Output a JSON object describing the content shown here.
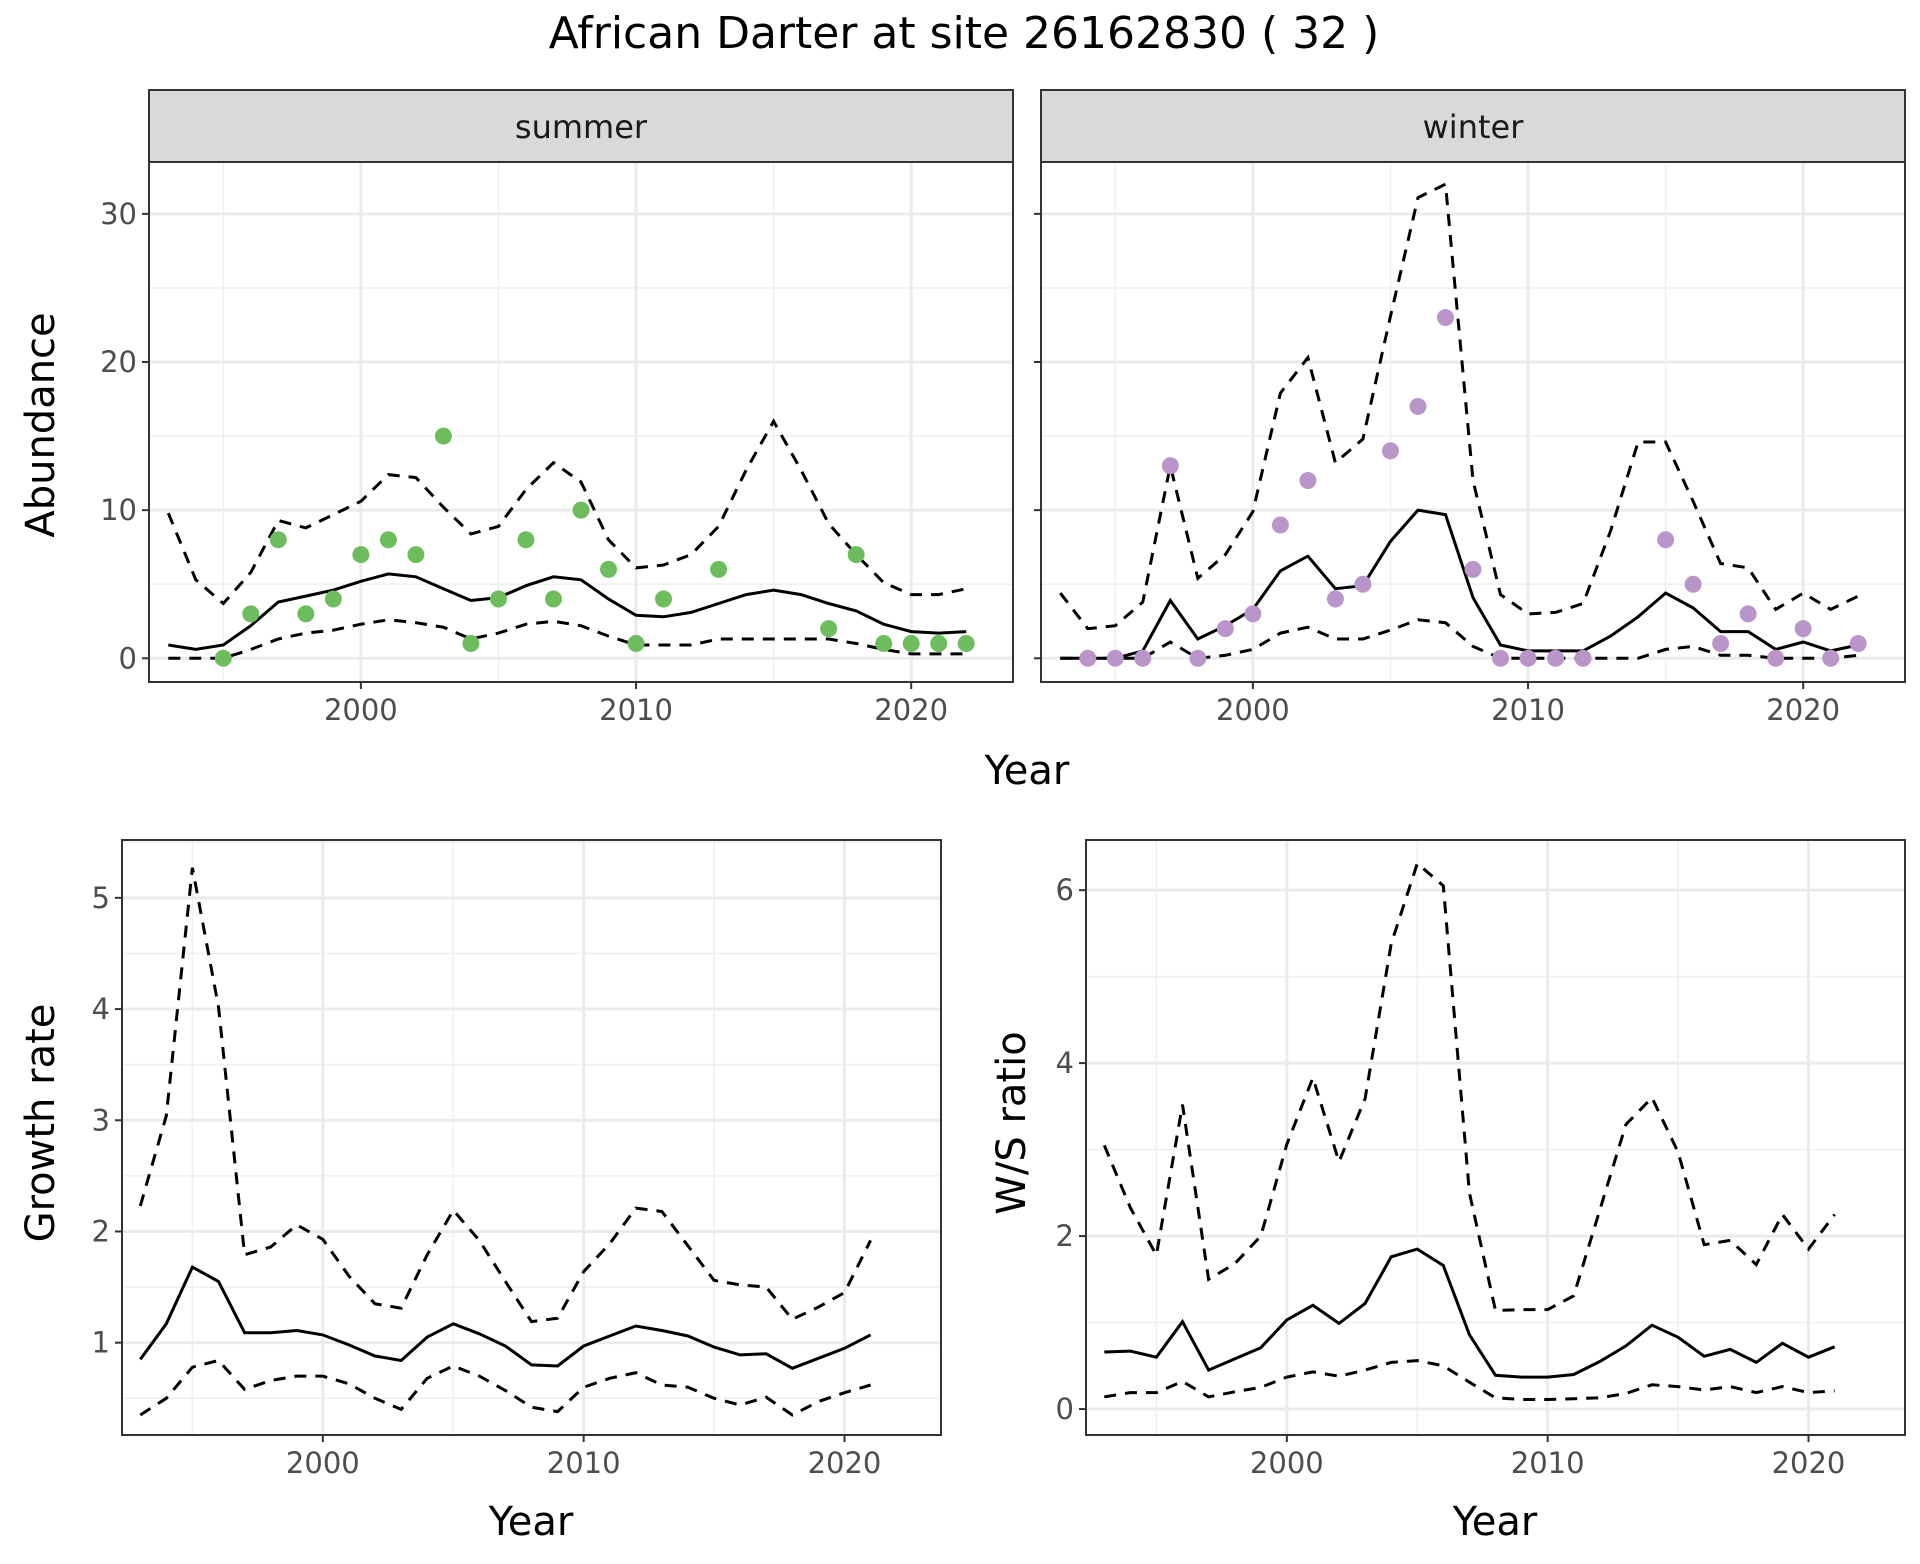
{
  "figure": {
    "title": "African Darter at site 26162830 ( 32 )"
  },
  "chart_data": [
    {
      "type": "line",
      "panel": "abundance",
      "facets": [
        "summer",
        "winter"
      ],
      "xlabel": "Year",
      "ylabel": "Abundance",
      "xlim": [
        1992.3,
        2023.7
      ],
      "ylim": [
        -1.6,
        33.5
      ],
      "xticks": [
        2000,
        2010,
        2020
      ],
      "yticks": [
        0,
        10,
        20,
        30
      ],
      "line_style": {
        "fit": "solid",
        "bounds": "dashed"
      },
      "colors": {
        "summer": "#6dbd5f",
        "winter": "#b995c9"
      },
      "x": [
        1993,
        1994,
        1995,
        1996,
        1997,
        1998,
        1999,
        2000,
        2001,
        2002,
        2003,
        2004,
        2005,
        2006,
        2007,
        2008,
        2009,
        2010,
        2011,
        2012,
        2013,
        2014,
        2015,
        2016,
        2017,
        2018,
        2019,
        2020,
        2021,
        2022
      ],
      "summer": {
        "fit": [
          0.9,
          0.6,
          0.9,
          2.2,
          3.8,
          4.2,
          4.6,
          5.2,
          5.7,
          5.5,
          4.7,
          3.9,
          4.1,
          4.9,
          5.5,
          5.3,
          4.0,
          2.9,
          2.8,
          3.1,
          3.7,
          4.3,
          4.6,
          4.3,
          3.7,
          3.2,
          2.3,
          1.8,
          1.7,
          1.8
        ],
        "lower": [
          0.0,
          0.0,
          0.0,
          0.6,
          1.3,
          1.7,
          1.9,
          2.3,
          2.6,
          2.4,
          2.1,
          1.3,
          1.7,
          2.3,
          2.5,
          2.2,
          1.5,
          0.9,
          0.9,
          0.9,
          1.3,
          1.3,
          1.3,
          1.3,
          1.3,
          1.0,
          0.6,
          0.3,
          0.3,
          0.3
        ],
        "upper": [
          9.8,
          5.3,
          3.7,
          5.8,
          9.3,
          8.8,
          9.7,
          10.6,
          12.4,
          12.2,
          10.2,
          8.4,
          8.9,
          11.4,
          13.2,
          11.9,
          8.0,
          6.1,
          6.3,
          7.0,
          8.9,
          12.7,
          16.0,
          12.7,
          9.1,
          7.0,
          5.1,
          4.3,
          4.3,
          4.7
        ],
        "points": {
          "x": [
            1995,
            1996,
            1997,
            1998,
            1999,
            2000,
            2001,
            2002,
            2003,
            2004,
            2005,
            2006,
            2007,
            2008,
            2009,
            2010,
            2011,
            2013,
            2017,
            2018,
            2019,
            2020,
            2021,
            2022
          ],
          "y": [
            0,
            3,
            8,
            3,
            4,
            7,
            8,
            7,
            15,
            1,
            4,
            8,
            4,
            10,
            6,
            1,
            4,
            6,
            2,
            7,
            1,
            1,
            1,
            1
          ]
        }
      },
      "winter": {
        "fit": [
          0.0,
          0.0,
          0.0,
          0.5,
          3.9,
          1.3,
          2.2,
          3.3,
          5.9,
          6.9,
          4.7,
          4.9,
          7.9,
          10.0,
          9.7,
          4.1,
          0.9,
          0.5,
          0.5,
          0.5,
          1.5,
          2.8,
          4.4,
          3.4,
          1.8,
          1.8,
          0.6,
          1.1,
          0.5,
          0.9
        ],
        "lower": [
          0.0,
          0.0,
          0.0,
          0.0,
          1.1,
          0.0,
          0.2,
          0.6,
          1.7,
          2.1,
          1.3,
          1.3,
          1.9,
          2.6,
          2.4,
          0.8,
          0.0,
          0.0,
          0.0,
          0.0,
          0.0,
          0.0,
          0.6,
          0.8,
          0.2,
          0.2,
          0.0,
          0.0,
          0.0,
          0.2
        ],
        "upper": [
          4.4,
          2.0,
          2.2,
          3.8,
          13.0,
          5.4,
          7.0,
          9.9,
          17.9,
          20.3,
          13.2,
          14.8,
          23.1,
          31.1,
          32.0,
          12.0,
          4.3,
          3.0,
          3.1,
          3.7,
          8.6,
          14.6,
          14.6,
          10.6,
          6.4,
          6.1,
          3.3,
          4.4,
          3.3,
          4.2
        ],
        "points": {
          "x": [
            1994,
            1995,
            1996,
            1997,
            1998,
            1999,
            2000,
            2001,
            2002,
            2003,
            2004,
            2005,
            2006,
            2007,
            2008,
            2009,
            2010,
            2011,
            2012,
            2015,
            2016,
            2017,
            2018,
            2019,
            2020,
            2021,
            2022
          ],
          "y": [
            0,
            0,
            0,
            13,
            0,
            2,
            3,
            9,
            12,
            4,
            5,
            14,
            17,
            23,
            6,
            0,
            0,
            0,
            0,
            8,
            5,
            1,
            3,
            0,
            2,
            0,
            1
          ]
        }
      }
    },
    {
      "type": "line",
      "panel": "growth",
      "xlabel": "Year",
      "ylabel": "Growth rate",
      "xlim": [
        1992.3,
        2023.7
      ],
      "ylim": [
        0.17,
        5.52
      ],
      "xticks": [
        2000,
        2010,
        2020
      ],
      "yticks": [
        1,
        2,
        3,
        4,
        5
      ],
      "line_style": {
        "fit": "solid",
        "bounds": "dashed"
      },
      "x": [
        1993,
        1994,
        1995,
        1996,
        1997,
        1998,
        1999,
        2000,
        2001,
        2002,
        2003,
        2004,
        2005,
        2006,
        2007,
        2008,
        2009,
        2010,
        2011,
        2012,
        2013,
        2014,
        2015,
        2016,
        2017,
        2018,
        2019,
        2020,
        2021
      ],
      "fit": [
        0.85,
        1.17,
        1.68,
        1.55,
        1.09,
        1.09,
        1.11,
        1.07,
        0.98,
        0.88,
        0.84,
        1.05,
        1.17,
        1.08,
        0.97,
        0.8,
        0.79,
        0.97,
        1.06,
        1.15,
        1.11,
        1.06,
        0.96,
        0.89,
        0.9,
        0.77,
        0.86,
        0.95,
        1.07
      ],
      "lower": [
        0.35,
        0.5,
        0.78,
        0.84,
        0.58,
        0.66,
        0.7,
        0.7,
        0.63,
        0.5,
        0.4,
        0.68,
        0.79,
        0.7,
        0.57,
        0.42,
        0.38,
        0.6,
        0.68,
        0.73,
        0.62,
        0.6,
        0.5,
        0.44,
        0.51,
        0.35,
        0.47,
        0.55,
        0.62
      ],
      "upper": [
        2.23,
        3.04,
        5.27,
        4.02,
        1.79,
        1.86,
        2.06,
        1.93,
        1.6,
        1.35,
        1.31,
        1.79,
        2.19,
        1.92,
        1.55,
        1.19,
        1.22,
        1.64,
        1.89,
        2.21,
        2.18,
        1.87,
        1.56,
        1.52,
        1.5,
        1.21,
        1.32,
        1.45,
        1.92
      ]
    },
    {
      "type": "line",
      "panel": "ws_ratio",
      "xlabel": "Year",
      "ylabel": "W/S ratio",
      "xlim": [
        1992.3,
        2023.7
      ],
      "ylim": [
        -0.3,
        6.58
      ],
      "xticks": [
        2000,
        2010,
        2020
      ],
      "yticks": [
        0,
        2,
        4,
        6
      ],
      "line_style": {
        "fit": "solid",
        "bounds": "dashed"
      },
      "x": [
        1993,
        1994,
        1995,
        1996,
        1997,
        1998,
        1999,
        2000,
        2001,
        2002,
        2003,
        2004,
        2005,
        2006,
        2007,
        2008,
        2009,
        2010,
        2011,
        2012,
        2013,
        2014,
        2015,
        2016,
        2017,
        2018,
        2019,
        2020,
        2021
      ],
      "fit": [
        0.66,
        0.67,
        0.6,
        1.01,
        0.45,
        0.58,
        0.71,
        1.03,
        1.2,
        0.99,
        1.22,
        1.76,
        1.85,
        1.66,
        0.86,
        0.39,
        0.37,
        0.37,
        0.4,
        0.55,
        0.73,
        0.97,
        0.83,
        0.61,
        0.69,
        0.54,
        0.76,
        0.6,
        0.72
      ],
      "lower": [
        0.14,
        0.19,
        0.19,
        0.32,
        0.14,
        0.2,
        0.25,
        0.37,
        0.43,
        0.38,
        0.45,
        0.54,
        0.56,
        0.5,
        0.31,
        0.13,
        0.11,
        0.11,
        0.12,
        0.13,
        0.18,
        0.28,
        0.26,
        0.22,
        0.26,
        0.19,
        0.26,
        0.19,
        0.21
      ],
      "upper": [
        3.05,
        2.33,
        1.78,
        3.52,
        1.5,
        1.68,
        2.0,
        3.06,
        3.83,
        2.86,
        3.59,
        5.38,
        6.31,
        6.05,
        2.5,
        1.14,
        1.15,
        1.15,
        1.31,
        2.3,
        3.29,
        3.6,
        2.97,
        1.9,
        1.95,
        1.67,
        2.25,
        1.85,
        2.25
      ]
    }
  ]
}
